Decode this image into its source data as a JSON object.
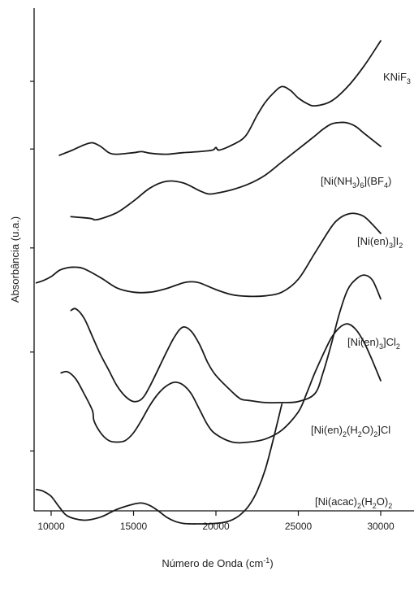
{
  "chart_data": {
    "type": "line",
    "title": "",
    "xlabel": "Número de Onda (cm",
    "xlabel_sup": "-1",
    "xlabel_close": ")",
    "ylabel": "Absorbância (u.a.)",
    "xlim": [
      9000,
      32000
    ],
    "ylim": [
      0,
      100
    ],
    "x_ticks": [
      10000,
      15000,
      20000,
      25000,
      30000
    ],
    "x_tick_labels": [
      "10000",
      "15000",
      "20000",
      "25000",
      "30000"
    ],
    "y_ticks": [
      14,
      33,
      53,
      72,
      85
    ],
    "grid": false,
    "legend": "none",
    "series": [
      {
        "name": "KNiF3",
        "label_parts": [
          [
            "KNiF",
            "n"
          ],
          [
            "3",
            "sub"
          ]
        ],
        "x": [
          10500,
          11300,
          12000,
          12500,
          13000,
          13500,
          14000,
          15000,
          15500,
          16000,
          17000,
          18000,
          19000,
          19800,
          20000,
          20200,
          21000,
          21800,
          22500,
          23000,
          23500,
          24000,
          24500,
          25000,
          25500,
          26000,
          27000,
          28000,
          29000,
          30000
        ],
        "y": [
          70.8,
          71.8,
          72.8,
          73.2,
          72.5,
          71.3,
          71.0,
          71.3,
          71.5,
          71.2,
          71.0,
          71.3,
          71.5,
          71.8,
          72.3,
          71.8,
          72.8,
          74.5,
          78.5,
          81.0,
          82.8,
          84.0,
          83.3,
          81.8,
          80.8,
          80.3,
          81.2,
          84.0,
          88.0,
          92.8
        ]
      },
      {
        "name": "[Ni(NH3)6](BF4)2",
        "label_parts": [
          [
            "[Ni(NH",
            "n"
          ],
          [
            "3",
            "sub"
          ],
          [
            ")",
            "n"
          ],
          [
            "6",
            "sub"
          ],
          [
            "](BF",
            "n"
          ],
          [
            "4",
            "sub"
          ],
          [
            ")",
            "n"
          ]
        ],
        "x": [
          11200,
          12000,
          12500,
          12600,
          13000,
          14000,
          15000,
          16000,
          17000,
          18000,
          19000,
          19500,
          20000,
          21000,
          22000,
          23000,
          24000,
          25000,
          26000,
          26500,
          27000,
          27500,
          28000,
          28500,
          29000,
          30000
        ],
        "y": [
          59.0,
          58.8,
          58.6,
          58.4,
          58.6,
          59.8,
          62.0,
          64.5,
          65.8,
          65.5,
          64.0,
          63.4,
          63.5,
          64.2,
          65.3,
          67.0,
          69.5,
          72.0,
          74.5,
          75.8,
          76.8,
          77.1,
          77.0,
          76.3,
          75.0,
          72.5
        ]
      },
      {
        "name": "[Ni(en)3]I2",
        "label_parts": [
          [
            "[Ni(en)",
            "n"
          ],
          [
            "3",
            "sub"
          ],
          [
            "]I",
            "n"
          ],
          [
            "2",
            "sub"
          ]
        ],
        "x": [
          9100,
          9500,
          10000,
          10500,
          11000,
          11500,
          12000,
          13000,
          14000,
          15000,
          16000,
          17000,
          18000,
          18500,
          19000,
          20000,
          21000,
          22000,
          23000,
          24000,
          25000,
          26000,
          27000,
          27500,
          28000,
          28500,
          29000,
          29500,
          30000
        ],
        "y": [
          46.3,
          46.7,
          47.5,
          48.7,
          49.2,
          49.3,
          49.0,
          47.3,
          45.3,
          44.5,
          44.5,
          45.2,
          46.3,
          46.5,
          46.3,
          45.0,
          44.0,
          43.7,
          43.8,
          44.5,
          47.0,
          52.0,
          57.0,
          58.7,
          59.5,
          59.6,
          59.0,
          57.5,
          55.8
        ]
      },
      {
        "name": "[Ni(en)3]Cl2",
        "label_parts": [
          [
            "[Ni(en)",
            "n"
          ],
          [
            "3",
            "sub"
          ],
          [
            "]Cl",
            "n"
          ],
          [
            "2",
            "sub"
          ]
        ],
        "x": [
          11200,
          11500,
          12000,
          12500,
          13000,
          13500,
          14000,
          14500,
          15000,
          15500,
          16000,
          17000,
          17500,
          18000,
          18500,
          19000,
          19500,
          20000,
          21000,
          21500,
          22000,
          23000,
          24000,
          25000,
          26000,
          26500,
          27000,
          27500,
          28000,
          28500,
          29000,
          29500,
          30000
        ],
        "y": [
          41.0,
          41.3,
          39.5,
          36.0,
          32.5,
          29.5,
          26.5,
          24.5,
          23.5,
          24.0,
          26.5,
          33.0,
          36.0,
          37.8,
          37.0,
          34.5,
          31.0,
          28.5,
          25.3,
          24.0,
          23.7,
          23.3,
          23.3,
          23.5,
          25.0,
          29.0,
          34.5,
          40.5,
          45.0,
          47.0,
          47.8,
          46.8,
          43.2
        ]
      },
      {
        "name": "[Ni(en)2(H2O)2]Cl2",
        "label_parts": [
          [
            "[Ni(en)",
            "n"
          ],
          [
            "2",
            "sub"
          ],
          [
            "(H",
            "n"
          ],
          [
            "2",
            "sub"
          ],
          [
            "O)",
            "n"
          ],
          [
            "2",
            "sub"
          ],
          [
            "]Cl",
            "n"
          ]
        ],
        "x": [
          10600,
          11000,
          11500,
          12000,
          12500,
          12600,
          13000,
          13500,
          14000,
          14500,
          15000,
          15500,
          16000,
          16500,
          17000,
          17500,
          18000,
          18500,
          19000,
          19500,
          20000,
          21000,
          22000,
          23000,
          24000,
          25000,
          25500,
          26000,
          26500,
          27000,
          27500,
          28000,
          28500,
          29000,
          29500,
          30000
        ],
        "y": [
          29.0,
          29.2,
          27.8,
          25.0,
          21.8,
          19.8,
          17.5,
          16.0,
          15.7,
          16.0,
          17.5,
          20.0,
          22.8,
          25.0,
          26.5,
          27.2,
          26.7,
          25.0,
          22.0,
          19.0,
          17.2,
          15.7,
          15.7,
          16.3,
          18.0,
          21.5,
          25.0,
          29.0,
          32.5,
          35.7,
          37.7,
          38.4,
          37.3,
          34.8,
          31.3,
          27.5
        ]
      },
      {
        "name": "[Ni(acac)2(H2O)2]",
        "label_parts": [
          [
            "[Ni(acac)",
            "n"
          ],
          [
            "2",
            "sub"
          ],
          [
            "(H",
            "n"
          ],
          [
            "2",
            "sub"
          ],
          [
            "O)",
            "n"
          ],
          [
            "2",
            "sub"
          ]
        ],
        "x": [
          9100,
          9500,
          10000,
          10500,
          11000,
          12000,
          13000,
          14000,
          15000,
          15500,
          16000,
          16500,
          17000,
          17500,
          18000,
          18500,
          19000,
          19500,
          20000,
          20500,
          21000,
          21500,
          22000,
          22500,
          23000,
          23500,
          24000
        ],
        "y": [
          6.6,
          6.3,
          5.3,
          3.2,
          1.5,
          0.7,
          1.3,
          2.8,
          3.8,
          4.0,
          3.5,
          2.5,
          1.3,
          0.5,
          0.1,
          0.0,
          0.0,
          0.0,
          0.1,
          0.3,
          0.8,
          1.8,
          3.5,
          6.3,
          10.5,
          16.5,
          23.0
        ]
      }
    ]
  }
}
